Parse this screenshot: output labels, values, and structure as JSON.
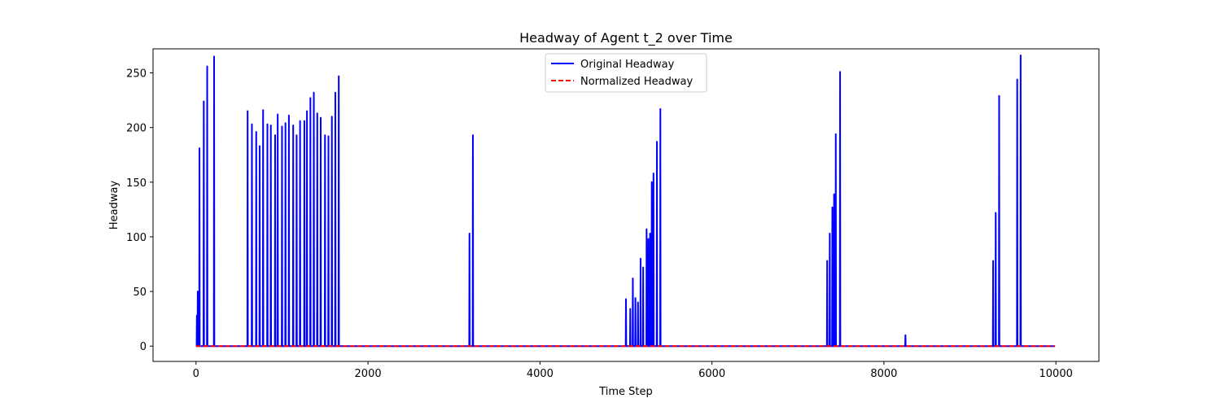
{
  "chart_data": {
    "type": "line",
    "title": "Headway of Agent t_2 over Time",
    "xlabel": "Time Step",
    "ylabel": "Headway",
    "xlim": [
      -500,
      10500
    ],
    "ylim": [
      -14,
      272
    ],
    "xticks": [
      0,
      2000,
      4000,
      6000,
      8000,
      10000
    ],
    "yticks": [
      0,
      50,
      100,
      150,
      200,
      250
    ],
    "grid": false,
    "legend_placement": "top-center",
    "series": [
      {
        "name": "Original Headway",
        "color": "#0000ff",
        "style": "solid",
        "peaks": [
          [
            10,
            28
          ],
          [
            20,
            50
          ],
          [
            40,
            181
          ],
          [
            90,
            224
          ],
          [
            130,
            256
          ],
          [
            210,
            265
          ],
          [
            600,
            215
          ],
          [
            650,
            203
          ],
          [
            700,
            196
          ],
          [
            740,
            183
          ],
          [
            780,
            216
          ],
          [
            830,
            203
          ],
          [
            870,
            202
          ],
          [
            920,
            193
          ],
          [
            950,
            212
          ],
          [
            1000,
            201
          ],
          [
            1040,
            204
          ],
          [
            1080,
            211
          ],
          [
            1130,
            202
          ],
          [
            1170,
            193
          ],
          [
            1210,
            206
          ],
          [
            1260,
            206
          ],
          [
            1290,
            215
          ],
          [
            1330,
            227
          ],
          [
            1370,
            232
          ],
          [
            1410,
            213
          ],
          [
            1450,
            209
          ],
          [
            1500,
            193
          ],
          [
            1540,
            192
          ],
          [
            1580,
            210
          ],
          [
            1620,
            232
          ],
          [
            1660,
            247
          ],
          [
            3180,
            103
          ],
          [
            3220,
            193
          ],
          [
            5000,
            43
          ],
          [
            5050,
            34
          ],
          [
            5080,
            62
          ],
          [
            5110,
            44
          ],
          [
            5140,
            40
          ],
          [
            5170,
            80
          ],
          [
            5200,
            72
          ],
          [
            5240,
            107
          ],
          [
            5260,
            98
          ],
          [
            5280,
            103
          ],
          [
            5300,
            150
          ],
          [
            5320,
            158
          ],
          [
            5360,
            187
          ],
          [
            5400,
            217
          ],
          [
            7340,
            78
          ],
          [
            7370,
            103
          ],
          [
            7400,
            127
          ],
          [
            7420,
            139
          ],
          [
            7440,
            194
          ],
          [
            7490,
            251
          ],
          [
            8250,
            10
          ],
          [
            9270,
            78
          ],
          [
            9300,
            122
          ],
          [
            9340,
            229
          ],
          [
            9550,
            244
          ],
          [
            9590,
            266
          ]
        ],
        "end_x": 9990
      },
      {
        "name": "Normalized Headway",
        "color": "#ff0000",
        "style": "dashed",
        "x": [
          0,
          9990
        ],
        "y": [
          0,
          0
        ]
      }
    ]
  }
}
